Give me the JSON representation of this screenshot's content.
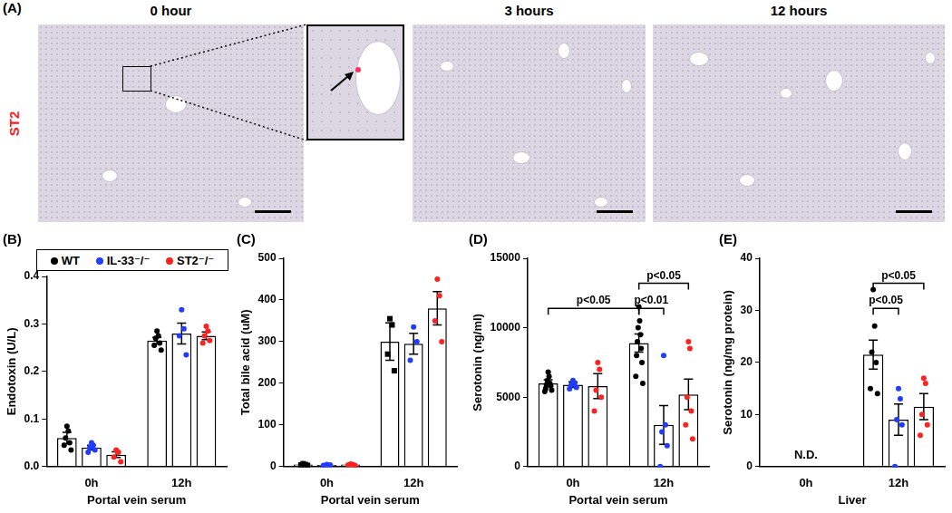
{
  "panel_a": {
    "panel": "(A)",
    "stain": "ST2",
    "images": [
      "0 hour",
      "3 hours",
      "12 hours"
    ]
  },
  "chart_data": [
    {
      "type": "bar",
      "panel": "(B)",
      "y_label": "Endotoxin (U/L)",
      "x_label": "Portal vein serum",
      "categories": [
        "0h",
        "12h"
      ],
      "series": [
        {
          "name": "WT",
          "color": "#000000",
          "marker": "circle",
          "values": [
            0.06,
            0.265
          ],
          "errors": [
            0.012,
            0.007
          ],
          "points": [
            [
              0.085,
              0.075,
              0.06,
              0.05,
              0.045,
              0.035
            ],
            [
              0.285,
              0.275,
              0.27,
              0.26,
              0.255,
              0.245
            ]
          ]
        },
        {
          "name": "IL-33⁻/⁻",
          "color": "#1f3cff",
          "marker": "circle",
          "values": [
            0.04,
            0.28
          ],
          "errors": [
            0.005,
            0.022
          ],
          "points": [
            [
              0.05,
              0.045,
              0.04,
              0.035,
              0.03
            ],
            [
              0.33,
              0.29,
              0.275,
              0.235
            ]
          ]
        },
        {
          "name": "ST2⁻/⁻",
          "color": "#ff2020",
          "marker": "circle",
          "values": [
            0.025,
            0.275
          ],
          "errors": [
            0.006,
            0.008
          ],
          "points": [
            [
              0.035,
              0.03,
              0.02,
              0.01
            ],
            [
              0.295,
              0.285,
              0.275,
              0.265,
              0.26
            ]
          ]
        }
      ],
      "ylim": [
        0,
        0.4
      ],
      "yticks": [
        {
          "value": 0,
          "label": "0.0"
        },
        0.1,
        0.2,
        0.3,
        0.4
      ],
      "grid": false,
      "legend": "top left"
    },
    {
      "type": "bar",
      "panel": "(C)",
      "y_label": "Total bile acid (uM)",
      "x_label": "Portal vein serum",
      "categories": [
        "0h",
        "12h"
      ],
      "series": [
        {
          "name": "WT",
          "color": "#000000",
          "marker": "square",
          "values": [
            5,
            300
          ],
          "errors": [
            1,
            45
          ],
          "points": [
            [
              7,
              5,
              4,
              3
            ],
            [
              355,
              340,
              270,
              230
            ]
          ]
        },
        {
          "name": "IL-33⁻/⁻",
          "color": "#1f3cff",
          "marker": "circle",
          "values": [
            4,
            295
          ],
          "errors": [
            1,
            25
          ],
          "points": [
            [
              5,
              4,
              3
            ],
            [
              335,
              300,
              255
            ]
          ]
        },
        {
          "name": "ST2⁻/⁻",
          "color": "#ff2020",
          "marker": "circle",
          "values": [
            5,
            380
          ],
          "errors": [
            1,
            40
          ],
          "points": [
            [
              6,
              5,
              4,
              3
            ],
            [
              450,
              410,
              350,
              300
            ]
          ]
        }
      ],
      "ylim": [
        0,
        500
      ],
      "yticks": [
        0,
        100,
        200,
        300,
        400,
        500
      ],
      "grid": false
    },
    {
      "type": "bar",
      "panel": "(D)",
      "y_label": "Serotonin (ng/ml)",
      "x_label": "Portal vein serum",
      "categories": [
        "0h",
        "12h"
      ],
      "series": [
        {
          "name": "WT",
          "color": "#000000",
          "marker": "circle",
          "values": [
            6000,
            8900
          ],
          "errors": [
            250,
            650
          ],
          "points": [
            [
              6800,
              6500,
              6200,
              6000,
              5900,
              5800,
              5600,
              5500,
              5400
            ],
            [
              11500,
              10500,
              10000,
              9500,
              9000,
              8500,
              8000,
              7500,
              6500,
              6000
            ]
          ]
        },
        {
          "name": "IL-33⁻/⁻",
          "color": "#1f3cff",
          "marker": "circle",
          "values": [
            5900,
            3000
          ],
          "errors": [
            200,
            1400
          ],
          "points": [
            [
              6200,
              6000,
              5900,
              5700,
              5600
            ],
            [
              8000,
              3000,
              2500,
              1500,
              0
            ]
          ]
        },
        {
          "name": "ST2⁻/⁻",
          "color": "#ff2020",
          "marker": "circle",
          "values": [
            5800,
            5200
          ],
          "errors": [
            900,
            1100
          ],
          "points": [
            [
              7500,
              7000,
              5500,
              5000,
              4000
            ],
            [
              9000,
              8500,
              5000,
              4000,
              3000,
              2000
            ]
          ]
        }
      ],
      "ylim": [
        0,
        15000
      ],
      "yticks": [
        0,
        5000,
        10000,
        15000
      ],
      "grid": false,
      "brackets": [
        {
          "from": {
            "category": "0h",
            "series": "WT"
          },
          "to": {
            "category": "12h",
            "series": "WT"
          },
          "text": "p<0.05"
        },
        {
          "from": {
            "category": "12h",
            "series": "WT"
          },
          "to": {
            "category": "12h",
            "series": "IL-33⁻/⁻"
          },
          "text": "p<0.01"
        },
        {
          "from": {
            "category": "12h",
            "series": "WT"
          },
          "to": {
            "category": "12h",
            "series": "ST2⁻/⁻"
          },
          "text": "p<0.05"
        }
      ]
    },
    {
      "type": "bar",
      "panel": "(E)",
      "y_label": "Serotonin (ng/mg protein)",
      "x_label": "Liver",
      "categories": [
        "0h",
        "12h"
      ],
      "series": [
        {
          "name": "WT",
          "color": "#000000",
          "marker": "circle",
          "values": [
            null,
            21.5
          ],
          "errors": [
            null,
            2.8
          ],
          "points": [
            [],
            [
              34,
              27,
              22,
              20,
              15,
              14
            ]
          ]
        },
        {
          "name": "IL-33⁻/⁻",
          "color": "#1f3cff",
          "marker": "circle",
          "values": [
            null,
            9
          ],
          "errors": [
            null,
            3
          ],
          "points": [
            [],
            [
              15,
              13,
              9,
              8,
              0
            ]
          ]
        },
        {
          "name": "ST2⁻/⁻",
          "color": "#ff2020",
          "marker": "circle",
          "values": [
            null,
            11.5
          ],
          "errors": [
            null,
            2.5
          ],
          "points": [
            [],
            [
              17,
              16,
              10,
              8,
              6
            ]
          ]
        }
      ],
      "ylim": [
        0,
        40
      ],
      "yticks": [
        0,
        10,
        20,
        30,
        40
      ],
      "grid": false,
      "annotations": [
        {
          "category": "0h",
          "text": "N.D."
        }
      ],
      "brackets": [
        {
          "from": {
            "category": "12h",
            "series": "WT"
          },
          "to": {
            "category": "12h",
            "series": "IL-33⁻/⁻"
          },
          "text": "p<0.05"
        },
        {
          "from": {
            "category": "12h",
            "series": "WT"
          },
          "to": {
            "category": "12h",
            "series": "ST2⁻/⁻"
          },
          "text": "p<0.05"
        }
      ]
    }
  ]
}
